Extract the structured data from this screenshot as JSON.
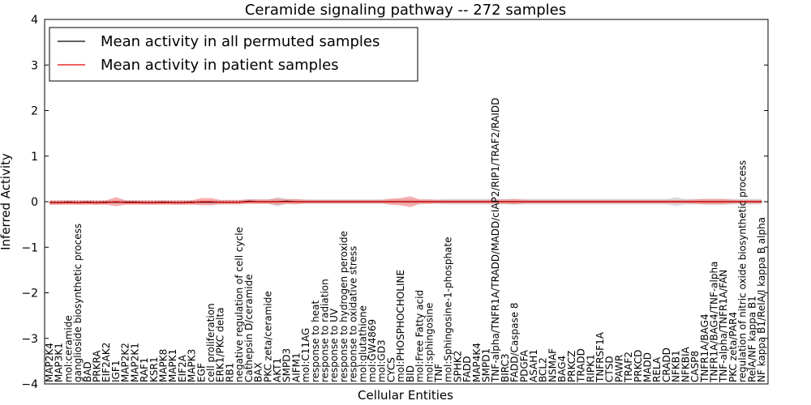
{
  "chart_data": {
    "type": "line",
    "title": "Ceramide signaling pathway -- 272 samples",
    "xlabel": "Cellular Entities",
    "ylabel": "Inferred Activity",
    "ylim": [
      -4,
      4
    ],
    "yticks": [
      "4",
      "3",
      "2",
      "1",
      "0",
      "−1",
      "−2",
      "−3",
      "−4"
    ],
    "ytick_values": [
      4,
      3,
      2,
      1,
      0,
      -1,
      -2,
      -3,
      -4
    ],
    "legend": {
      "placement": "top-left",
      "entries": [
        {
          "label": "Mean activity in all permuted samples",
          "color": "#000000"
        },
        {
          "label": "Mean activity in patient samples",
          "color": "#e00000"
        }
      ]
    },
    "categories": [
      "MAP2K4",
      "MAP3K1",
      "mol:ceramide",
      "ganglioside biosynthetic process",
      "BAD",
      "PRKRA",
      "EIF2AK2",
      "IGF1",
      "MAP2K2",
      "MAP2K1",
      "RAF1",
      "KSR1",
      "MAPK8",
      "MAPK1",
      "EIF2A",
      "MAPK3",
      "EGF",
      "cell proliferation",
      "ERK1/PKC delta",
      "RB1",
      "negative regulation of cell cycle",
      "Cathepsin D/ceramide",
      "BAX",
      "PKC zeta/ceramide",
      "AKT1",
      "SMPD3",
      "AIFM1",
      "mol:C11AG",
      "response to heat",
      "response to radiation",
      "response to UV",
      "response to hydrogen peroxide",
      "response to oxidative stress",
      "mol:glutathione",
      "mol:GW4869",
      "mol:GD3",
      "CYCS",
      "mol:PHOSPHOCHOLINE",
      "BID",
      "mol:Free Fatty acid",
      "mol:sphingosine",
      "TNF",
      "mol:Sphingosine-1-phosphate",
      "SPHK2",
      "FADD",
      "MAP4K4",
      "SMPD1",
      "TNF-alpha/TNFR1A/TRADD/MADD/cIAP2/RIP1/TRAF2/RAIDD",
      "BIRC3",
      "FADD/Caspase 8",
      "PDGFA",
      "ASAH1",
      "BCL2",
      "NSMAF",
      "BAG4",
      "PRKCZ",
      "TRADD",
      "RIPK1",
      "TNFRSF1A",
      "CTSD",
      "PAWR",
      "TRAF2",
      "PRKCD",
      "MADD",
      "RELA",
      "CRADD",
      "NFKB1",
      "NFKBIA",
      "CASP8",
      "TNFR1A/BAG4",
      "TNFR1A/BAG4/TNF-alpha",
      "TNF-alpha/TNFR1A/FAN",
      "PKC zeta/PAR4",
      "regulation of nitric oxide biosynthetic process",
      "RelA/NF kappa B1",
      "NF kappa B1/RelA/I kappa B alpha"
    ],
    "series": [
      {
        "name": "Mean activity in all permuted samples",
        "color": "#000000",
        "values": [
          -0.02,
          -0.02,
          -0.01,
          -0.02,
          -0.01,
          -0.02,
          -0.01,
          -0.01,
          -0.01,
          -0.01,
          -0.02,
          -0.02,
          -0.01,
          -0.02,
          -0.02,
          -0.01,
          -0.01,
          -0.01,
          -0.01,
          -0.01,
          -0.01,
          0.01,
          0.0,
          0.0,
          0.0,
          0.01,
          0.0,
          0.0,
          0.0,
          0.0,
          0.0,
          0.0,
          0.0,
          0.0,
          0.0,
          0.0,
          0.0,
          0.0,
          0.0,
          0.0,
          0.0,
          0.0,
          0.0,
          0.0,
          0.0,
          0.0,
          0.0,
          0.0,
          0.0,
          0.0,
          0.0,
          0.0,
          0.0,
          0.0,
          0.0,
          0.0,
          0.0,
          0.0,
          0.0,
          0.0,
          0.0,
          0.0,
          0.0,
          0.0,
          0.0,
          0.0,
          0.0,
          0.0,
          0.0,
          0.0,
          0.0,
          0.0,
          0.0,
          0.0,
          0.0,
          0.0
        ],
        "band": [
          0.04,
          0.04,
          0.04,
          0.04,
          0.04,
          0.04,
          0.04,
          0.04,
          0.04,
          0.04,
          0.04,
          0.04,
          0.04,
          0.04,
          0.04,
          0.04,
          0.04,
          0.04,
          0.04,
          0.04,
          0.04,
          0.05,
          0.05,
          0.05,
          0.1,
          0.06,
          0.05,
          0.05,
          0.05,
          0.05,
          0.05,
          0.05,
          0.05,
          0.05,
          0.05,
          0.05,
          0.05,
          0.05,
          0.05,
          0.05,
          0.05,
          0.05,
          0.06,
          0.06,
          0.06,
          0.06,
          0.06,
          0.06,
          0.06,
          0.06,
          0.06,
          0.06,
          0.06,
          0.06,
          0.06,
          0.06,
          0.06,
          0.06,
          0.06,
          0.06,
          0.06,
          0.06,
          0.06,
          0.06,
          0.06,
          0.06,
          0.1,
          0.06,
          0.06,
          0.06,
          0.06,
          0.06,
          0.06,
          0.06,
          0.06,
          0.06
        ]
      },
      {
        "name": "Mean activity in patient samples",
        "color": "#e00000",
        "values": [
          -0.02,
          -0.02,
          -0.02,
          -0.02,
          -0.02,
          -0.02,
          -0.02,
          0.0,
          -0.02,
          -0.02,
          -0.02,
          -0.02,
          -0.02,
          -0.02,
          -0.02,
          -0.02,
          0.0,
          0.0,
          -0.01,
          -0.01,
          -0.01,
          0.0,
          0.0,
          0.0,
          0.0,
          0.0,
          0.0,
          0.0,
          0.0,
          0.0,
          0.0,
          0.0,
          0.0,
          0.0,
          0.0,
          0.0,
          0.0,
          0.0,
          0.0,
          0.0,
          0.0,
          0.0,
          0.0,
          0.0,
          0.0,
          0.0,
          0.0,
          0.0,
          0.0,
          0.0,
          0.0,
          0.0,
          0.0,
          0.0,
          0.0,
          0.0,
          0.0,
          0.0,
          0.0,
          0.0,
          0.0,
          0.0,
          0.0,
          0.0,
          0.0,
          0.0,
          0.0,
          0.0,
          0.0,
          0.0,
          0.0,
          0.0,
          0.0,
          0.0,
          0.0,
          0.0
        ],
        "band": [
          0.05,
          0.05,
          0.05,
          0.05,
          0.05,
          0.05,
          0.05,
          0.1,
          0.05,
          0.05,
          0.05,
          0.05,
          0.05,
          0.05,
          0.05,
          0.05,
          0.08,
          0.08,
          0.05,
          0.05,
          0.05,
          0.05,
          0.05,
          0.05,
          0.07,
          0.05,
          0.06,
          0.04,
          0.04,
          0.04,
          0.04,
          0.04,
          0.04,
          0.04,
          0.04,
          0.04,
          0.07,
          0.08,
          0.12,
          0.05,
          0.05,
          0.04,
          0.04,
          0.04,
          0.04,
          0.04,
          0.04,
          0.05,
          0.05,
          0.06,
          0.04,
          0.04,
          0.04,
          0.04,
          0.04,
          0.04,
          0.04,
          0.04,
          0.04,
          0.04,
          0.04,
          0.04,
          0.04,
          0.04,
          0.04,
          0.04,
          0.04,
          0.04,
          0.05,
          0.06,
          0.06,
          0.06,
          0.04,
          0.04,
          0.04,
          0.04
        ]
      }
    ],
    "grid": false,
    "zero_line": "dotted"
  }
}
